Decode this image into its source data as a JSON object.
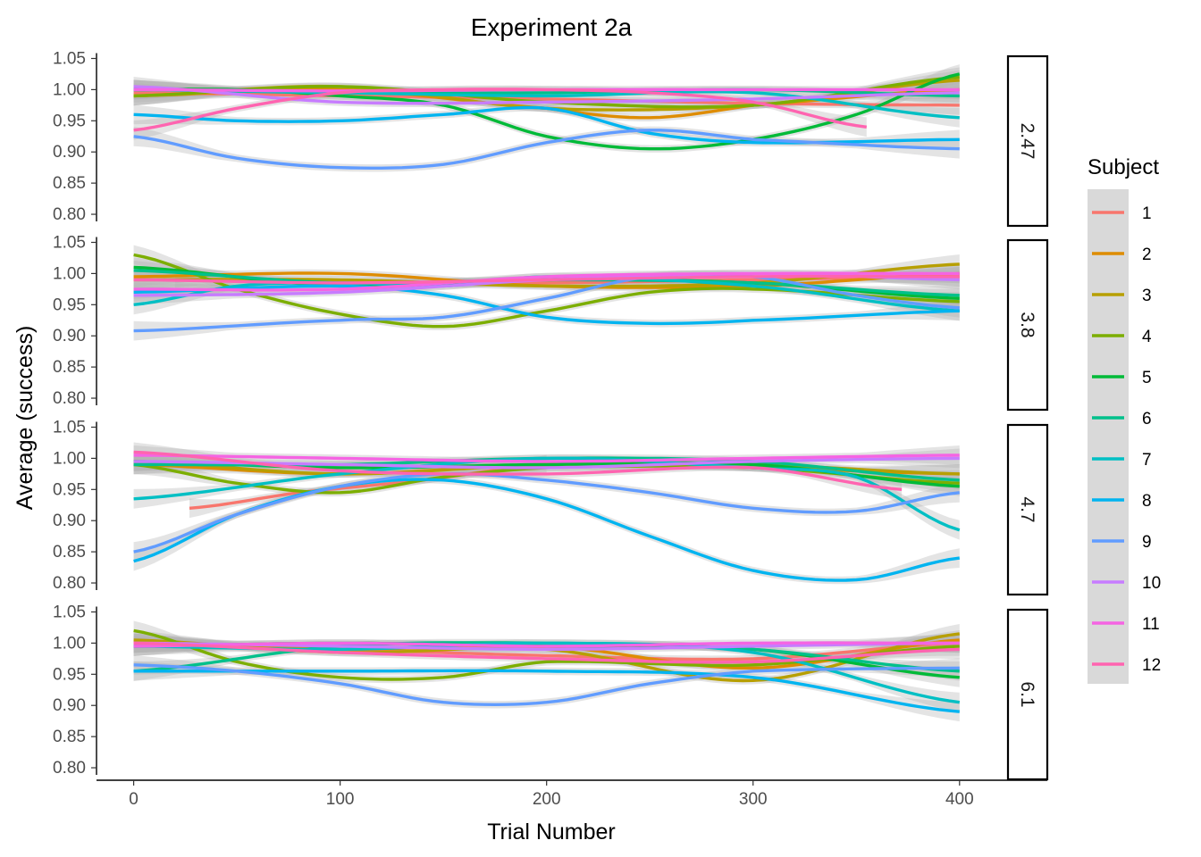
{
  "chart_data": {
    "type": "line",
    "title": "Experiment 2a",
    "xlabel": "Trial Number",
    "ylabel": "Average (success)",
    "xlim": [
      -18,
      420
    ],
    "ylim": [
      0.78,
      1.055
    ],
    "x_ticks": [
      0,
      100,
      200,
      300,
      400
    ],
    "y_ticks": [
      0.8,
      0.85,
      0.9,
      0.95,
      1.0,
      1.05
    ],
    "x_tick_labels": [
      "0",
      "100",
      "200",
      "300",
      "400"
    ],
    "y_tick_labels": [
      "0.80",
      "0.85",
      "0.90",
      "0.95",
      "1.00",
      "1.05"
    ],
    "legend": {
      "title": "Subject",
      "position": "right",
      "entries": [
        {
          "label": "1",
          "color": "#F8766D"
        },
        {
          "label": "2",
          "color": "#DE8C00"
        },
        {
          "label": "3",
          "color": "#B79F00"
        },
        {
          "label": "4",
          "color": "#7CAE00"
        },
        {
          "label": "5",
          "color": "#00BA38"
        },
        {
          "label": "6",
          "color": "#00C08B"
        },
        {
          "label": "7",
          "color": "#00BFC4"
        },
        {
          "label": "8",
          "color": "#00B4F0"
        },
        {
          "label": "9",
          "color": "#619CFF"
        },
        {
          "label": "10",
          "color": "#C77CFF"
        },
        {
          "label": "11",
          "color": "#F564E3"
        },
        {
          "label": "12",
          "color": "#FF64B0"
        }
      ]
    },
    "panels": [
      {
        "label": "2.47",
        "series": [
          {
            "name": "1",
            "x": [
              0,
              100,
              200,
              300,
              400
            ],
            "y": [
              0.995,
              0.99,
              0.985,
              0.978,
              0.975
            ]
          },
          {
            "name": "2",
            "x": [
              0,
              100,
              200,
              250,
              300,
              400
            ],
            "y": [
              0.99,
              1.0,
              0.97,
              0.955,
              0.975,
              1.0
            ]
          },
          {
            "name": "3",
            "x": [
              0,
              100,
              200,
              300,
              400
            ],
            "y": [
              0.99,
              1.005,
              0.97,
              0.975,
              1.015
            ]
          },
          {
            "name": "4",
            "x": [
              0,
              100,
              200,
              300,
              400
            ],
            "y": [
              0.99,
              1.005,
              0.98,
              0.975,
              1.02
            ]
          },
          {
            "name": "5",
            "x": [
              0,
              50,
              100,
              150,
              200,
              250,
              300,
              350,
              400
            ],
            "y": [
              1.0,
              1.0,
              0.99,
              0.975,
              0.925,
              0.905,
              0.92,
              0.96,
              1.025
            ]
          },
          {
            "name": "6",
            "x": [
              0,
              100,
              200,
              300,
              400
            ],
            "y": [
              1.0,
              0.995,
              0.995,
              1.0,
              0.99
            ]
          },
          {
            "name": "7",
            "x": [
              0,
              100,
              200,
              300,
              400
            ],
            "y": [
              1.0,
              0.995,
              0.99,
              0.995,
              0.955
            ]
          },
          {
            "name": "8",
            "x": [
              0,
              50,
              100,
              150,
              200,
              250,
              300,
              400
            ],
            "y": [
              0.96,
              0.95,
              0.95,
              0.96,
              0.97,
              0.93,
              0.915,
              0.92
            ]
          },
          {
            "name": "9",
            "x": [
              0,
              50,
              100,
              150,
              200,
              250,
              300,
              400
            ],
            "y": [
              0.925,
              0.89,
              0.875,
              0.88,
              0.915,
              0.935,
              0.92,
              0.905
            ]
          },
          {
            "name": "10",
            "x": [
              0,
              100,
              200,
              300,
              400
            ],
            "y": [
              1.005,
              0.98,
              0.98,
              0.985,
              0.995
            ]
          },
          {
            "name": "11",
            "x": [
              0,
              100,
              200,
              300,
              400
            ],
            "y": [
              1.0,
              0.998,
              1.0,
              1.0,
              1.0
            ]
          },
          {
            "name": "12",
            "x": [
              0,
              50,
              100,
              150,
              200,
              250,
              300,
              355
            ],
            "y": [
              0.935,
              0.97,
              0.995,
              1.0,
              1.0,
              0.995,
              0.98,
              0.94
            ]
          }
        ]
      },
      {
        "label": "3.8",
        "series": [
          {
            "name": "1",
            "x": [
              20,
              100,
              200,
              300,
              400
            ],
            "y": [
              0.99,
              0.985,
              0.985,
              0.99,
              0.995
            ]
          },
          {
            "name": "2",
            "x": [
              0,
              100,
              200,
              300,
              400
            ],
            "y": [
              0.995,
              1.0,
              0.98,
              0.98,
              1.0
            ]
          },
          {
            "name": "3",
            "x": [
              0,
              100,
              200,
              300,
              400
            ],
            "y": [
              0.99,
              0.99,
              0.98,
              0.985,
              1.015
            ]
          },
          {
            "name": "4",
            "x": [
              0,
              50,
              100,
              150,
              200,
              250,
              300,
              400
            ],
            "y": [
              1.03,
              0.975,
              0.935,
              0.915,
              0.94,
              0.97,
              0.975,
              0.955
            ]
          },
          {
            "name": "5",
            "x": [
              0,
              100,
              200,
              300,
              400
            ],
            "y": [
              1.01,
              0.98,
              0.99,
              0.985,
              0.96
            ]
          },
          {
            "name": "6",
            "x": [
              0,
              100,
              200,
              300,
              400
            ],
            "y": [
              1.005,
              0.985,
              0.99,
              0.985,
              0.965
            ]
          },
          {
            "name": "7",
            "x": [
              0,
              50,
              100,
              150,
              200,
              300,
              400
            ],
            "y": [
              0.95,
              0.98,
              0.985,
              0.98,
              0.995,
              0.98,
              0.94
            ]
          },
          {
            "name": "8",
            "x": [
              0,
              100,
              150,
              200,
              250,
              300,
              400
            ],
            "y": [
              0.97,
              0.98,
              0.965,
              0.93,
              0.92,
              0.925,
              0.94
            ]
          },
          {
            "name": "9",
            "x": [
              0,
              100,
              150,
              200,
              250,
              300,
              350,
              400
            ],
            "y": [
              0.908,
              0.925,
              0.93,
              0.96,
              0.995,
              0.995,
              0.965,
              0.945
            ]
          },
          {
            "name": "10",
            "x": [
              0,
              100,
              200,
              300,
              400
            ],
            "y": [
              0.965,
              0.97,
              0.99,
              1.0,
              0.99
            ]
          },
          {
            "name": "11",
            "x": [
              0,
              100,
              200,
              300,
              400
            ],
            "y": [
              0.975,
              0.975,
              0.995,
              1.0,
              1.0
            ]
          },
          {
            "name": "12",
            "x": [
              0,
              100,
              200,
              300,
              400
            ],
            "y": [
              0.99,
              0.985,
              0.99,
              0.995,
              0.995
            ]
          }
        ]
      },
      {
        "label": "4.7",
        "series": [
          {
            "name": "1",
            "x": [
              27,
              80,
              140,
              200
            ],
            "y": [
              0.92,
              0.945,
              0.965,
              0.99
            ]
          },
          {
            "name": "2",
            "x": [
              0,
              100,
              200,
              300,
              400
            ],
            "y": [
              0.99,
              0.975,
              0.99,
              0.985,
              0.975
            ]
          },
          {
            "name": "3",
            "x": [
              0,
              100,
              200,
              300,
              400
            ],
            "y": [
              0.995,
              0.975,
              0.99,
              0.99,
              0.975
            ]
          },
          {
            "name": "4",
            "x": [
              0,
              50,
              100,
              150,
              200,
              300,
              400
            ],
            "y": [
              0.99,
              0.96,
              0.945,
              0.97,
              0.985,
              0.985,
              0.96
            ]
          },
          {
            "name": "5",
            "x": [
              0,
              100,
              200,
              300,
              400
            ],
            "y": [
              0.995,
              0.985,
              0.99,
              0.99,
              0.955
            ]
          },
          {
            "name": "6",
            "x": [
              0,
              100,
              200,
              300,
              400
            ],
            "y": [
              0.99,
              0.99,
              1.0,
              0.995,
              0.965
            ]
          },
          {
            "name": "7",
            "x": [
              0,
              100,
              200,
              300,
              350,
              400
            ],
            "y": [
              0.935,
              0.975,
              1.0,
              0.985,
              0.97,
              0.885
            ]
          },
          {
            "name": "8",
            "x": [
              0,
              50,
              100,
              150,
              200,
              250,
              300,
              350,
              400
            ],
            "y": [
              0.835,
              0.91,
              0.955,
              0.965,
              0.935,
              0.875,
              0.82,
              0.805,
              0.84
            ]
          },
          {
            "name": "9",
            "x": [
              0,
              50,
              100,
              150,
              200,
              250,
              300,
              350,
              400
            ],
            "y": [
              0.85,
              0.91,
              0.955,
              0.975,
              0.965,
              0.945,
              0.92,
              0.915,
              0.945
            ]
          },
          {
            "name": "10",
            "x": [
              0,
              100,
              200,
              300,
              400
            ],
            "y": [
              0.995,
              0.99,
              0.985,
              0.995,
              1.0
            ]
          },
          {
            "name": "11",
            "x": [
              0,
              100,
              200,
              300,
              400
            ],
            "y": [
              1.005,
              1.0,
              0.995,
              1.0,
              1.005
            ]
          },
          {
            "name": "12",
            "x": [
              0,
              100,
              200,
              300,
              372
            ],
            "y": [
              1.01,
              0.98,
              0.975,
              0.985,
              0.95
            ]
          }
        ]
      },
      {
        "label": "6.1",
        "series": [
          {
            "name": "1",
            "x": [
              0,
              100,
              200,
              300,
              400
            ],
            "y": [
              1.0,
              0.99,
              0.98,
              0.975,
              1.0
            ]
          },
          {
            "name": "2",
            "x": [
              0,
              100,
              200,
              300,
              400
            ],
            "y": [
              1.0,
              0.99,
              0.995,
              0.96,
              1.005
            ]
          },
          {
            "name": "3",
            "x": [
              0,
              100,
              200,
              300,
              400
            ],
            "y": [
              1.005,
              0.985,
              0.99,
              0.94,
              1.015
            ]
          },
          {
            "name": "4",
            "x": [
              0,
              50,
              100,
              150,
              200,
              300,
              400
            ],
            "y": [
              1.02,
              0.97,
              0.945,
              0.945,
              0.97,
              0.965,
              0.995
            ]
          },
          {
            "name": "5",
            "x": [
              0,
              100,
              200,
              300,
              400
            ],
            "y": [
              0.995,
              1.0,
              0.995,
              0.99,
              0.945
            ]
          },
          {
            "name": "6",
            "x": [
              0,
              100,
              200,
              300,
              400
            ],
            "y": [
              0.955,
              0.995,
              1.0,
              0.99,
              0.955
            ]
          },
          {
            "name": "7",
            "x": [
              0,
              100,
              200,
              300,
              400
            ],
            "y": [
              0.995,
              0.99,
              1.0,
              0.985,
              0.905
            ]
          },
          {
            "name": "8",
            "x": [
              0,
              100,
              200,
              300,
              400
            ],
            "y": [
              0.955,
              0.955,
              0.955,
              0.945,
              0.89
            ]
          },
          {
            "name": "9",
            "x": [
              0,
              50,
              100,
              150,
              200,
              250,
              300,
              400
            ],
            "y": [
              0.965,
              0.955,
              0.935,
              0.905,
              0.905,
              0.935,
              0.955,
              0.96
            ]
          },
          {
            "name": "10",
            "x": [
              0,
              100,
              200,
              300,
              400
            ],
            "y": [
              1.0,
              0.995,
              0.99,
              0.995,
              1.0
            ]
          },
          {
            "name": "11",
            "x": [
              0,
              100,
              200,
              300,
              400
            ],
            "y": [
              0.995,
              1.0,
              0.995,
              1.0,
              1.0
            ]
          },
          {
            "name": "12",
            "x": [
              0,
              100,
              200,
              300,
              400
            ],
            "y": [
              1.0,
              0.985,
              0.975,
              0.97,
              0.99
            ]
          }
        ]
      }
    ]
  }
}
